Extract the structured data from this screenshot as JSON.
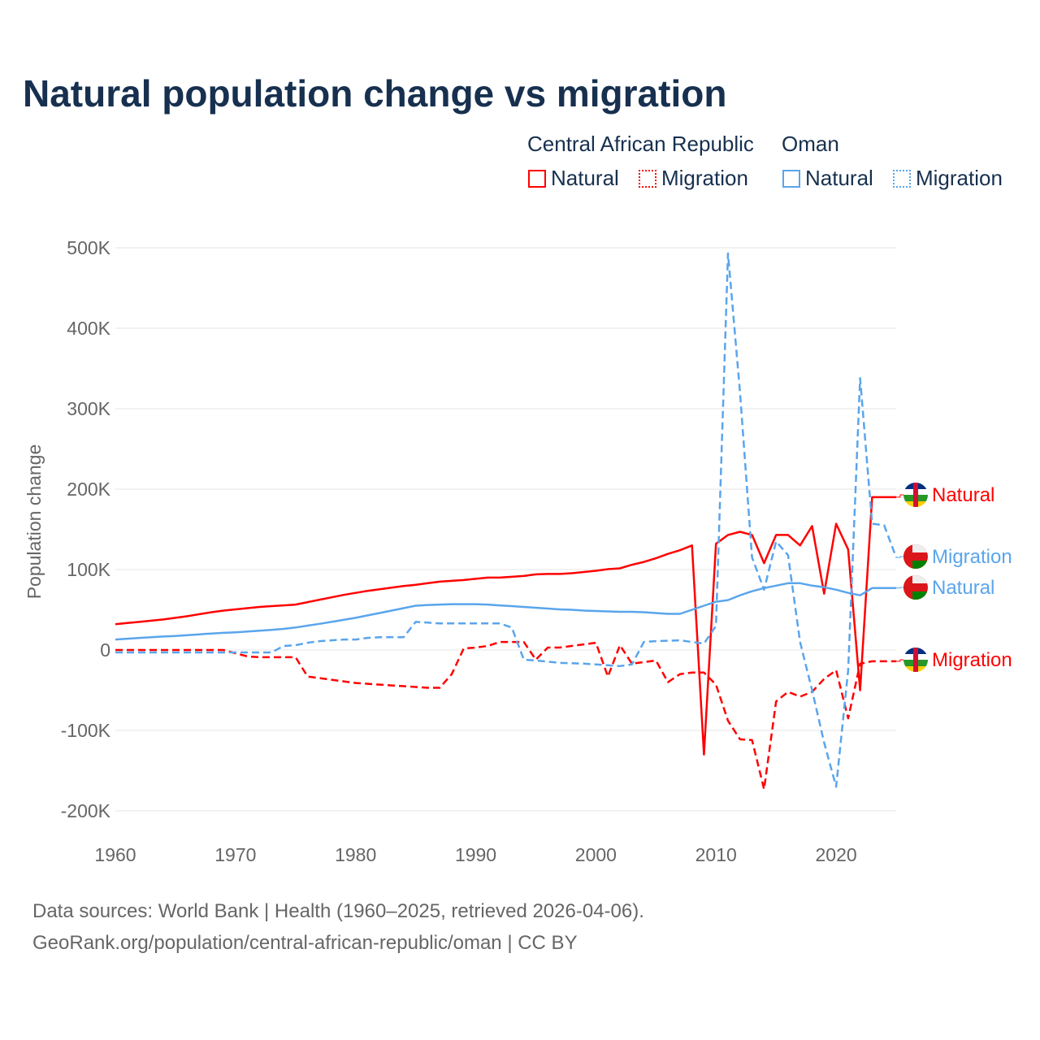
{
  "title": "Natural population change vs migration",
  "legend": {
    "groups": [
      {
        "name": "Central African Republic",
        "color": "#ff0000",
        "items": [
          "Natural",
          "Migration"
        ]
      },
      {
        "name": "Oman",
        "color": "#5aa5ec",
        "items": [
          "Natural",
          "Migration"
        ]
      }
    ]
  },
  "footer": {
    "line1": "Data sources: World Bank | Health (1960–2025, retrieved 2026-04-06).",
    "line2": "GeoRank.org/population/central-african-republic/oman | CC BY"
  },
  "chart_data": {
    "type": "line",
    "title": "Natural population change vs migration",
    "xlabel": "",
    "ylabel": "Population change",
    "xlim": [
      1960,
      2025
    ],
    "ylim": [
      -200000,
      500000
    ],
    "xticks": [
      "1960",
      "1970",
      "1980",
      "1990",
      "2000",
      "2010",
      "2020"
    ],
    "yticks": [
      "500K",
      "400K",
      "300K",
      "200K",
      "100K",
      "0",
      "-100K",
      "-200K"
    ],
    "grid": true,
    "legend_position": "top-right",
    "x": [
      1960,
      1961,
      1962,
      1963,
      1964,
      1965,
      1966,
      1967,
      1968,
      1969,
      1970,
      1971,
      1972,
      1973,
      1974,
      1975,
      1976,
      1977,
      1978,
      1979,
      1980,
      1981,
      1982,
      1983,
      1984,
      1985,
      1986,
      1987,
      1988,
      1989,
      1990,
      1991,
      1992,
      1993,
      1994,
      1995,
      1996,
      1997,
      1998,
      1999,
      2000,
      2001,
      2002,
      2003,
      2004,
      2005,
      2006,
      2007,
      2008,
      2009,
      2010,
      2011,
      2012,
      2013,
      2014,
      2015,
      2016,
      2017,
      2018,
      2019,
      2020,
      2021,
      2022,
      2023,
      2024,
      2025
    ],
    "series": [
      {
        "name": "Central African Republic – Natural",
        "end_label": "Natural",
        "color": "#ff0000",
        "dash": "solid",
        "values": [
          32000,
          33500,
          35000,
          36500,
          38000,
          40000,
          42000,
          44500,
          47000,
          49000,
          50500,
          52000,
          53500,
          54500,
          55500,
          56500,
          59500,
          62500,
          65500,
          68500,
          71000,
          73500,
          75500,
          77500,
          79500,
          81000,
          83000,
          85000,
          86000,
          87000,
          88500,
          90000,
          90000,
          91000,
          92000,
          94000,
          94500,
          94500,
          95500,
          97000,
          98500,
          100500,
          101500,
          106000,
          109500,
          114000,
          119500,
          124000,
          130000,
          -130000,
          132000,
          143000,
          147000,
          143000,
          108000,
          143000,
          143000,
          130000,
          154000,
          70000,
          157000,
          125000,
          -50000,
          190000,
          190000,
          190000
        ]
      },
      {
        "name": "Central African Republic – Migration",
        "end_label": "Migration",
        "color": "#ff0000",
        "dash": "dashed",
        "values": [
          0,
          0,
          0,
          0,
          0,
          0,
          0,
          0,
          0,
          0,
          -4000,
          -8000,
          -9000,
          -9000,
          -9000,
          -9000,
          -33000,
          -35000,
          -37000,
          -39000,
          -41000,
          -42000,
          -43000,
          -44000,
          -45000,
          -46000,
          -47000,
          -47000,
          -30000,
          2000,
          3000,
          5000,
          10000,
          10000,
          10000,
          -12000,
          3000,
          3000,
          5000,
          7000,
          9000,
          -33000,
          6000,
          -17000,
          -15000,
          -13000,
          -40000,
          -30000,
          -28000,
          -28000,
          -43000,
          -88000,
          -111000,
          -112000,
          -173000,
          -64000,
          -52000,
          -58000,
          -52000,
          -36000,
          -25000,
          -85000,
          -17000,
          -14000,
          -14000,
          -14000
        ]
      },
      {
        "name": "Oman – Natural",
        "end_label": "Natural",
        "color": "#5aa5ec",
        "dash": "solid",
        "values": [
          13000,
          14000,
          15000,
          16000,
          16800,
          17500,
          18500,
          19500,
          20500,
          21300,
          22000,
          23000,
          24000,
          25000,
          26300,
          28000,
          30300,
          32500,
          35000,
          37500,
          40000,
          43000,
          46000,
          49000,
          52000,
          55000,
          56000,
          56500,
          57000,
          57000,
          57000,
          56500,
          55500,
          54500,
          53500,
          52500,
          51500,
          50500,
          50000,
          49000,
          48500,
          48000,
          47500,
          47500,
          47000,
          46000,
          45000,
          45000,
          50000,
          55000,
          60000,
          62000,
          68000,
          73000,
          77000,
          80000,
          83000,
          83000,
          80000,
          78000,
          75000,
          71000,
          68000,
          77000,
          77000,
          77000
        ]
      },
      {
        "name": "Oman – Migration",
        "end_label": "Migration",
        "color": "#5aa5ec",
        "dash": "dashed",
        "values": [
          -3000,
          -3000,
          -3000,
          -3000,
          -3000,
          -3000,
          -3000,
          -3000,
          -3000,
          -3000,
          -3000,
          -3000,
          -3000,
          -3000,
          5000,
          6000,
          9000,
          11000,
          12000,
          13000,
          13000,
          15000,
          16000,
          16000,
          16000,
          35000,
          34000,
          33000,
          33000,
          33000,
          33000,
          33000,
          33000,
          28000,
          -12000,
          -13000,
          -14500,
          -16000,
          -16500,
          -17000,
          -18000,
          -19000,
          -20000,
          -18000,
          10000,
          11000,
          11500,
          12000,
          10000,
          8000,
          30000,
          493000,
          320000,
          115000,
          75000,
          135000,
          118000,
          10000,
          -50000,
          -115000,
          -170000,
          -25000,
          338000,
          157000,
          155000,
          115000
        ]
      }
    ]
  }
}
